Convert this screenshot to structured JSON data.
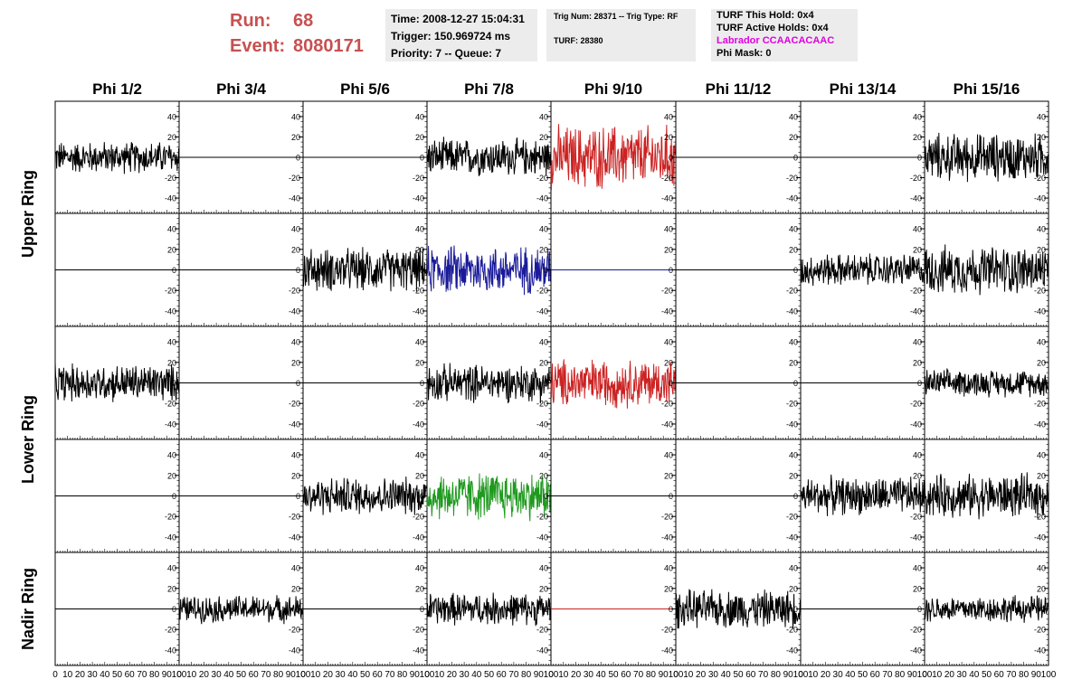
{
  "header": {
    "run_label": "Run:",
    "run_value": "68",
    "event_label": "Event:",
    "event_value": "8080171",
    "time": "Time: 2008-12-27 15:04:31",
    "trigger": "Trigger: 150.969724 ms",
    "priority": "Priority: 7 -- Queue: 7",
    "trig_num": "Trig Num: 28371 -- Trig Type: RF",
    "turf": "TURF: 28380",
    "turf_this_hold": "TURF This Hold: 0x4",
    "turf_active_holds": "TURF Active Holds: 0x4",
    "labrador": "Labrador CCAACACAAC",
    "phi_mask": "Phi Mask: 0"
  },
  "colors": {
    "run_text": "#c85050",
    "labrador_text": "#e000e0",
    "red": "#cc2222",
    "blue": "#1a1a9a",
    "green": "#1f9a1f",
    "black": "#000000"
  },
  "chart_data": {
    "type": "line",
    "columns": [
      "Phi 1/2",
      "Phi 3/4",
      "Phi 5/6",
      "Phi 7/8",
      "Phi 9/10",
      "Phi 11/12",
      "Phi 13/14",
      "Phi 15/16"
    ],
    "ring_labels": [
      {
        "text": "Upper Ring",
        "rows": [
          0,
          1
        ]
      },
      {
        "text": "Lower Ring",
        "rows": [
          2,
          3
        ]
      },
      {
        "text": "Nadir Ring",
        "rows": [
          4
        ]
      }
    ],
    "xlim": [
      0,
      100
    ],
    "ylim": [
      -55,
      55
    ],
    "y_ticks": [
      -40,
      -20,
      0,
      20,
      40
    ],
    "x_ticks": [
      0,
      10,
      20,
      30,
      40,
      50,
      60,
      70,
      80,
      90,
      100
    ],
    "x_tick_labels": [
      "0",
      "10",
      "20",
      "30",
      "40",
      "50",
      "60",
      "70",
      "80",
      "90",
      "100"
    ],
    "panels": [
      [
        {
          "amp": 12,
          "color": "black"
        },
        {
          "amp": 0,
          "color": "black"
        },
        {
          "amp": 0,
          "color": "black"
        },
        {
          "amp": 14,
          "color": "black"
        },
        {
          "amp": 24,
          "color": "red"
        },
        {
          "amp": 0,
          "color": "black"
        },
        {
          "amp": 0,
          "color": "black"
        },
        {
          "amp": 18,
          "color": "black"
        }
      ],
      [
        {
          "amp": 0,
          "color": "black"
        },
        {
          "amp": 0,
          "color": "black"
        },
        {
          "amp": 16,
          "color": "black"
        },
        {
          "amp": 18,
          "color": "blue"
        },
        {
          "amp": 0,
          "color": "blue"
        },
        {
          "amp": 0,
          "color": "black"
        },
        {
          "amp": 12,
          "color": "black"
        },
        {
          "amp": 18,
          "color": "black"
        }
      ],
      [
        {
          "amp": 14,
          "color": "black"
        },
        {
          "amp": 0,
          "color": "black"
        },
        {
          "amp": 0,
          "color": "black"
        },
        {
          "amp": 14,
          "color": "black"
        },
        {
          "amp": 18,
          "color": "red"
        },
        {
          "amp": 0,
          "color": "black"
        },
        {
          "amp": 0,
          "color": "black"
        },
        {
          "amp": 10,
          "color": "black"
        }
      ],
      [
        {
          "amp": 0,
          "color": "black"
        },
        {
          "amp": 0,
          "color": "black"
        },
        {
          "amp": 14,
          "color": "black"
        },
        {
          "amp": 18,
          "color": "green"
        },
        {
          "amp": 0,
          "color": "black"
        },
        {
          "amp": 0,
          "color": "black"
        },
        {
          "amp": 14,
          "color": "black"
        },
        {
          "amp": 16,
          "color": "black"
        }
      ],
      [
        {
          "amp": 0,
          "color": "black"
        },
        {
          "amp": 10,
          "color": "black"
        },
        {
          "amp": 0,
          "color": "black"
        },
        {
          "amp": 12,
          "color": "black"
        },
        {
          "amp": 0,
          "color": "red"
        },
        {
          "amp": 14,
          "color": "black"
        },
        {
          "amp": 0,
          "color": "black"
        },
        {
          "amp": 10,
          "color": "black"
        }
      ]
    ]
  }
}
